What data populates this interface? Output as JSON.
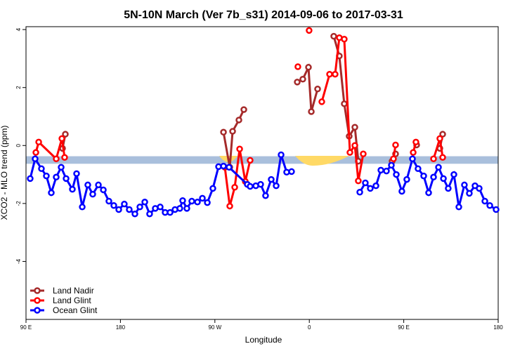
{
  "chart_data": {
    "type": "line",
    "title": "5N-10N March (Ver 7b_s31)   2014-09-06 to 2017-03-31",
    "xlabel": "Longitude",
    "ylabel": "XCO2 - MLO trend (ppm)",
    "xlim": [
      90,
      540
    ],
    "xticks": [
      {
        "value": 90,
        "label": "90 E"
      },
      {
        "value": 180,
        "label": "180"
      },
      {
        "value": 270,
        "label": "90 W"
      },
      {
        "value": 360,
        "label": "0"
      },
      {
        "value": 450,
        "label": "90 E"
      },
      {
        "value": 540,
        "label": "180"
      }
    ],
    "ylim": [
      -6,
      4.1
    ],
    "yticks": [
      -4,
      -2,
      0,
      2,
      4
    ],
    "band": [
      -0.63,
      -0.37
    ],
    "band_color": "#a9bfdc",
    "legend": "bottom-left",
    "series": [
      {
        "name": "Land Nadir",
        "color": "#a52a2a",
        "x": [
          124.8,
          127.5,
          null,
          278.2,
          284.2,
          286.9,
          292.9,
          297.6,
          null,
          348.5,
          353.8,
          359.2,
          361.9,
          367.9,
          null,
          383.3,
          388.6,
          393.3,
          398.0,
          403.4,
          406.7,
          null,
          438.9,
          442.2,
          null,
          462.3,
          null,
          484.4,
          487.1
        ],
        "values": [
          -0.1,
          0.39,
          null,
          0.46,
          -0.75,
          0.49,
          0.88,
          1.24,
          null,
          2.19,
          2.29,
          2.7,
          1.17,
          1.95,
          null,
          3.77,
          3.09,
          1.44,
          0.32,
          0.63,
          -0.54,
          null,
          -0.54,
          -0.29,
          null,
          0.02,
          null,
          -0.1,
          0.39
        ]
      },
      {
        "name": "Land Glint",
        "color": "#ff0000",
        "x": [
          99.4,
          102.1,
          118.8,
          124.2,
          126.8,
          null,
          279.5,
          284.2,
          288.9,
          293.6,
          299.0,
          303.6,
          null,
          349.1,
          null,
          359.8,
          null,
          371.9,
          379.3,
          384.6,
          388.6,
          393.3,
          398.7,
          403.4,
          406.7,
          411.4,
          null,
          440.2,
          442.2,
          null,
          459.0,
          461.6,
          null,
          478.4,
          484.4,
          487.1
        ],
        "values": [
          -0.24,
          0.12,
          -0.46,
          0.24,
          -0.41,
          null,
          -0.75,
          -2.09,
          -1.44,
          -0.12,
          -1.24,
          -0.51,
          null,
          2.72,
          null,
          3.97,
          null,
          1.51,
          2.46,
          2.46,
          3.72,
          3.67,
          -0.24,
          0.0,
          -1.22,
          -0.29,
          null,
          -0.46,
          0.02,
          null,
          -0.24,
          0.12,
          null,
          -0.46,
          0.24,
          -0.41
        ]
      },
      {
        "name": "Ocean Glint",
        "color": "#0000ff",
        "x": [
          94.0,
          98.7,
          104.7,
          109.4,
          114.1,
          118.8,
          123.5,
          128.2,
          134.2,
          138.2,
          143.6,
          148.9,
          153.6,
          159.0,
          163.7,
          169.0,
          173.7,
          178.4,
          183.7,
          188.4,
          193.8,
          198.5,
          203.2,
          207.8,
          213.2,
          217.9,
          222.6,
          227.3,
          232.0,
          236.6,
          239.3,
          243.3,
          248.0,
          253.4,
          258.1,
          262.8,
          268.1,
          273.5,
          278.2,
          283.5,
          300.9,
          303.6,
          309.0,
          313.6,
          318.3,
          323.7,
          328.4,
          333.1,
          338.4,
          343.1,
          null,
          408.1,
          413.4,
          418.1,
          423.5,
          428.2,
          433.5,
          438.2,
          442.9,
          448.2,
          452.9,
          458.3,
          463.6,
          469.0,
          473.7,
          478.4,
          483.1,
          487.8,
          492.4,
          497.8,
          502.5,
          507.8,
          512.5,
          517.9,
          521.9,
          527.3,
          532.0,
          538.0
        ],
        "values": [
          -1.14,
          -0.46,
          -0.8,
          -1.05,
          -1.63,
          -1.09,
          -0.75,
          -1.14,
          -1.51,
          -0.97,
          -2.12,
          -1.36,
          -1.68,
          -1.36,
          -1.53,
          -1.92,
          -2.07,
          -2.21,
          -2.02,
          -2.21,
          -2.36,
          -2.12,
          -1.95,
          -2.36,
          -2.17,
          -2.12,
          -2.31,
          -2.31,
          -2.21,
          -2.17,
          -1.9,
          -2.17,
          -1.92,
          -1.95,
          -1.82,
          -1.97,
          -1.48,
          -0.73,
          -0.71,
          -0.75,
          -1.34,
          -1.41,
          -1.39,
          -1.34,
          -1.73,
          -1.17,
          -1.39,
          -0.32,
          -0.92,
          -0.9,
          null,
          -1.61,
          -1.29,
          -1.48,
          -1.39,
          -0.85,
          -0.88,
          -0.68,
          -1.0,
          -1.58,
          -1.17,
          -0.46,
          -0.8,
          -1.05,
          -1.63,
          -1.09,
          -0.75,
          -1.14,
          -1.48,
          -1.0,
          -2.12,
          -1.36,
          -1.65,
          -1.39,
          -1.48,
          -1.92,
          -2.07,
          -2.21
        ]
      }
    ]
  }
}
